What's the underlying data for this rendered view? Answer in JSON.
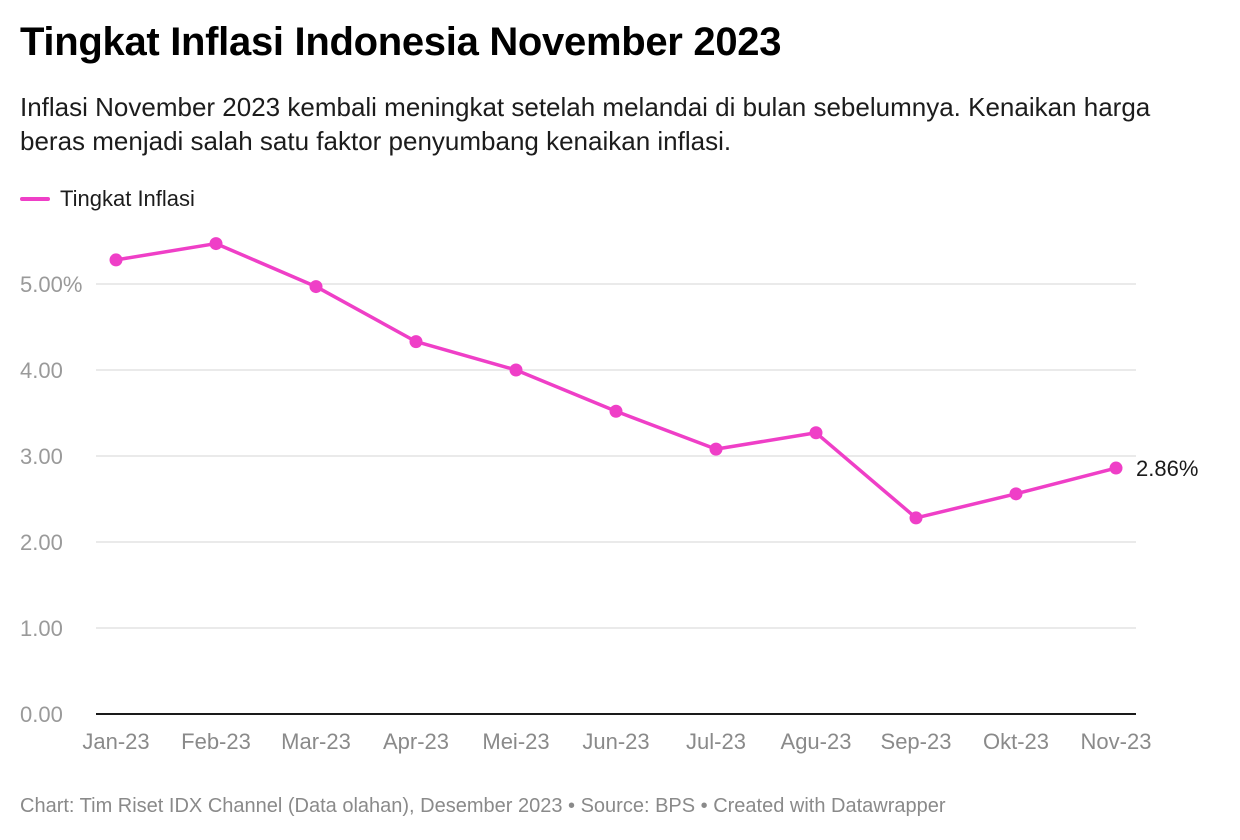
{
  "title": "Tingkat Inflasi Indonesia November 2023",
  "subtitle": "Inflasi November 2023 kembali meningkat setelah melandai di bulan sebelumnya. Kenaikan harga beras menjadi salah satu faktor penyumbang kenaikan inflasi.",
  "footer": "Chart: Tim Riset IDX Channel (Data olahan), Desember 2023 • Source: BPS • Created with Datawrapper",
  "colors": {
    "series": "#ef3fc7",
    "grid": "#e3e3e3",
    "axis": "#1a1a1a"
  },
  "chart_data": {
    "type": "line",
    "title": "Tingkat Inflasi Indonesia November 2023",
    "xlabel": "",
    "ylabel": "",
    "categories": [
      "Jan-23",
      "Feb-23",
      "Mar-23",
      "Apr-23",
      "Mei-23",
      "Jun-23",
      "Jul-23",
      "Agu-23",
      "Sep-23",
      "Okt-23",
      "Nov-23"
    ],
    "series": [
      {
        "name": "Tingkat Inflasi",
        "values": [
          5.28,
          5.47,
          4.97,
          4.33,
          4.0,
          3.52,
          3.08,
          3.27,
          2.28,
          2.56,
          2.86
        ]
      }
    ],
    "ylim": [
      0,
      5.5
    ],
    "yticks": [
      0,
      1,
      2,
      3,
      4,
      5
    ],
    "ytick_labels": [
      "0.00",
      "1.00",
      "2.00",
      "3.00",
      "4.00",
      "5.00%"
    ],
    "end_label": "2.86%",
    "grid": true,
    "legend_position": "top-left"
  }
}
